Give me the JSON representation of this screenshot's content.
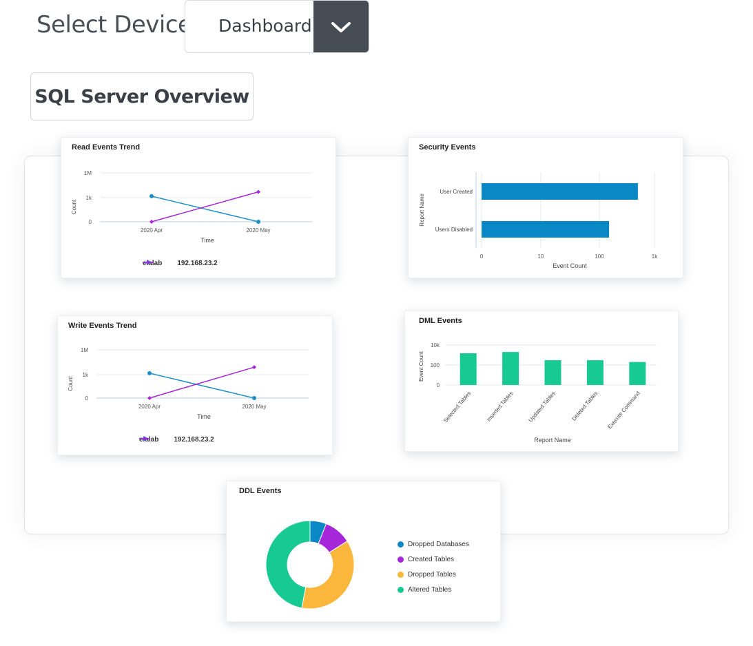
{
  "header": {
    "select_label": "Select Device",
    "select_value": "Dashboard",
    "overview_button": "SQL Server Overview"
  },
  "colors": {
    "blue": "#1e90c8",
    "purple": "#a626d9",
    "bar_blue": "#0a87c5",
    "green": "#17c992",
    "orange": "#fbb63c",
    "toggle_bg": "#454c54"
  },
  "read_events": {
    "title": "Read Events Trend",
    "ylabel": "Count",
    "xlabel": "Time",
    "yticks": [
      "1M",
      "1k",
      "0"
    ],
    "xticks": [
      "2020 Apr",
      "2020 May"
    ],
    "legend": [
      "elalab",
      "192.168.23.2"
    ]
  },
  "write_events": {
    "title": "Write Events Trend",
    "ylabel": "Count",
    "xlabel": "Time",
    "yticks": [
      "1M",
      "1k",
      "0"
    ],
    "xticks": [
      "2020 Apr",
      "2020 May"
    ],
    "legend": [
      "elalab",
      "192.168.23.2"
    ]
  },
  "security_events": {
    "title": "Security Events",
    "ylabel": "Report Name",
    "xlabel": "Event Count",
    "categories": [
      "User Created",
      "Users Disabled"
    ],
    "xticks": [
      "0",
      "10",
      "100",
      "1k"
    ]
  },
  "dml_events": {
    "title": "DML Events",
    "ylabel": "Event Count",
    "xlabel": "Report Name",
    "yticks": [
      "10k",
      "100",
      "0"
    ],
    "categories": [
      "Selected Tables",
      "Inserted Tables",
      "Updated Tables",
      "Deleted Tables",
      "Execute Command"
    ]
  },
  "ddl_events": {
    "title": "DDL Events",
    "legend": [
      "Dropped Databases",
      "Created Tables",
      "Dropped Tables",
      "Altered Tables"
    ]
  },
  "chart_data": [
    {
      "type": "line",
      "title": "Read Events Trend",
      "x": [
        "2020 Apr",
        "2020 May"
      ],
      "series": [
        {
          "name": "elalab",
          "values": [
            1500,
            0
          ]
        },
        {
          "name": "192.168.23.2",
          "values": [
            0,
            5000
          ]
        }
      ],
      "xlabel": "Time",
      "ylabel": "Count",
      "yscale": "log"
    },
    {
      "type": "bar",
      "orientation": "horizontal",
      "title": "Security Events",
      "categories": [
        "User Created",
        "Users Disabled"
      ],
      "values": [
        500,
        150
      ],
      "xlabel": "Event Count",
      "ylabel": "Report Name",
      "xscale": "log"
    },
    {
      "type": "line",
      "title": "Write Events Trend",
      "x": [
        "2020 Apr",
        "2020 May"
      ],
      "series": [
        {
          "name": "elalab",
          "values": [
            1500,
            0
          ]
        },
        {
          "name": "192.168.23.2",
          "values": [
            0,
            8000
          ]
        }
      ],
      "xlabel": "Time",
      "ylabel": "Count",
      "yscale": "log"
    },
    {
      "type": "bar",
      "title": "DML Events",
      "categories": [
        "Selected Tables",
        "Inserted Tables",
        "Updated Tables",
        "Deleted Tables",
        "Execute Command"
      ],
      "values": [
        1500,
        2000,
        300,
        300,
        200
      ],
      "xlabel": "Report Name",
      "ylabel": "Event Count",
      "yscale": "log"
    },
    {
      "type": "pie",
      "title": "DDL Events",
      "categories": [
        "Dropped Databases",
        "Created Tables",
        "Dropped Tables",
        "Altered Tables"
      ],
      "values": [
        6,
        10,
        37,
        47
      ]
    }
  ]
}
